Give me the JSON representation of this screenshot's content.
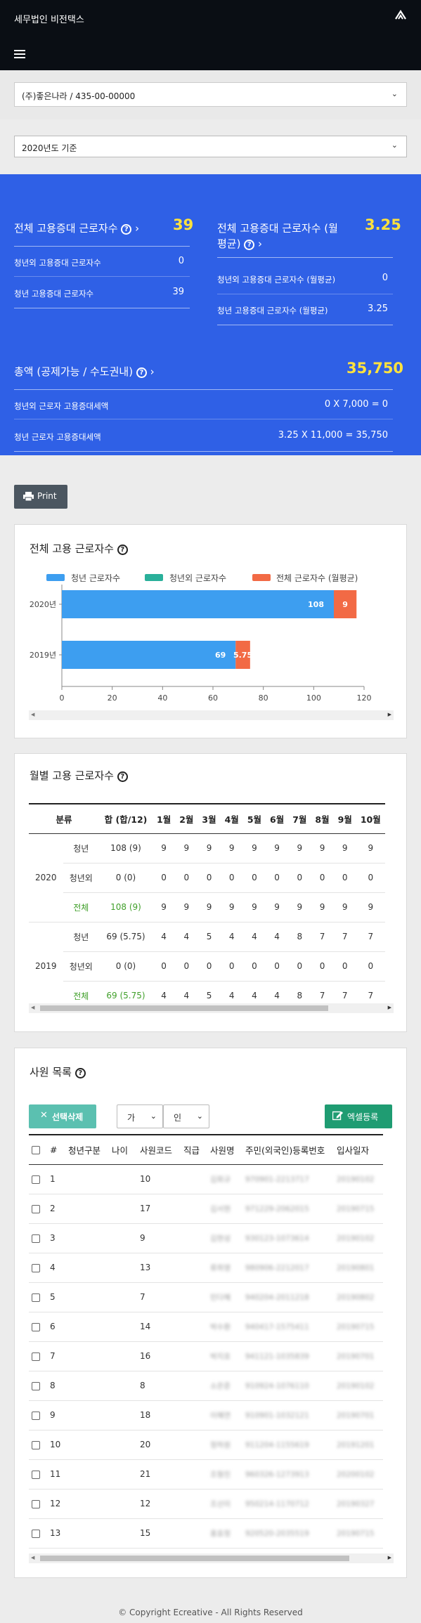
{
  "header": {
    "brand": "세무법인 비전택스",
    "menu_icon": "hamburger-icon",
    "logo_icon": "triangle-logo-icon"
  },
  "company_select": {
    "value": "(주)좋은나라 / 435-00-00000"
  },
  "year_select": {
    "value": "2020년도 기준"
  },
  "summary": {
    "left": {
      "title": "전체 고용증대 근로자수",
      "value": "39",
      "rows": [
        {
          "label": "청년외 고용증대 근로자수",
          "value": "0"
        },
        {
          "label": "청년 고용증대 근로자수",
          "value": "39"
        }
      ]
    },
    "right": {
      "title_line1": "전체 고용증대 근로자수 (월",
      "title_line2": "평균)",
      "value": "3.25",
      "rows": [
        {
          "label": "청년외 고용증대 근로자수 (월평균)",
          "value": "0"
        },
        {
          "label": "청년 고용증대 근로자수 (월평균)",
          "value": "3.25"
        }
      ]
    },
    "total": {
      "title": "총액 (공제가능 / 수도권내)",
      "value": "35,750",
      "rows": [
        {
          "label": "청년외 근로자 고용증대세액",
          "value": "0 X 7,000 = 0"
        },
        {
          "label": "청년 근로자 고용증대세액",
          "value": "3.25 X 11,000 = 35,750"
        }
      ]
    }
  },
  "print_button": {
    "label": "Print"
  },
  "chart_card": {
    "title": "전체 고용 근로자수"
  },
  "chart_data": {
    "type": "bar",
    "orientation": "horizontal",
    "stacked": true,
    "categories": [
      "2020년",
      "2019년"
    ],
    "series": [
      {
        "name": "청년 근로자수",
        "color": "#3d9ef0",
        "values": [
          108,
          69
        ],
        "labels": [
          "108",
          "69"
        ]
      },
      {
        "name": "청년외 근로자수",
        "color": "#2ab09a",
        "values": [
          0,
          0
        ],
        "labels": [
          "0",
          "0"
        ]
      },
      {
        "name": "전체 근로자수 (월평균)",
        "color": "#f26a45",
        "values": [
          9,
          5.75
        ],
        "labels": [
          "9",
          "5.75"
        ]
      }
    ],
    "xticks": [
      "0",
      "20",
      "40",
      "60",
      "80",
      "100",
      "120"
    ],
    "xlim": [
      0,
      120
    ],
    "legend": "top"
  },
  "monthly_card": {
    "title": "월별 고용 근로자수",
    "headers": [
      "분류",
      "",
      "합 (합/12)",
      "1월",
      "2월",
      "3월",
      "4월",
      "5월",
      "6월",
      "7월",
      "8월",
      "9월",
      "10월"
    ],
    "groups": [
      {
        "year": "2020",
        "rows": [
          {
            "type": "청년",
            "sum": "108 (9)",
            "months": [
              "9",
              "9",
              "9",
              "9",
              "9",
              "9",
              "9",
              "9",
              "9",
              "9"
            ]
          },
          {
            "type": "청년외",
            "sum": "0 (0)",
            "months": [
              "0",
              "0",
              "0",
              "0",
              "0",
              "0",
              "0",
              "0",
              "0",
              "0"
            ]
          },
          {
            "type": "전체",
            "sum": "108 (9)",
            "months": [
              "9",
              "9",
              "9",
              "9",
              "9",
              "9",
              "9",
              "9",
              "9",
              "9"
            ]
          }
        ]
      },
      {
        "year": "2019",
        "rows": [
          {
            "type": "청년",
            "sum": "69 (5.75)",
            "months": [
              "4",
              "4",
              "5",
              "4",
              "4",
              "4",
              "8",
              "7",
              "7",
              "7"
            ]
          },
          {
            "type": "청년외",
            "sum": "0 (0)",
            "months": [
              "0",
              "0",
              "0",
              "0",
              "0",
              "0",
              "0",
              "0",
              "0",
              "0"
            ]
          },
          {
            "type": "전체",
            "sum": "69 (5.75)",
            "months": [
              "4",
              "4",
              "5",
              "4",
              "4",
              "4",
              "8",
              "7",
              "7",
              "7"
            ]
          }
        ]
      }
    ]
  },
  "employee_card": {
    "title": "사원 목록",
    "delete_button": "선택삭제",
    "excel_button": "엑셀등록",
    "filter1": "가",
    "filter2": "인",
    "headers": [
      "",
      "#",
      "청년구분",
      "나이",
      "사원코드",
      "직급",
      "사원명",
      "주민(외국인)등록번호",
      "입사일자"
    ],
    "rows": [
      {
        "no": "1",
        "code": "10",
        "name": "김회규",
        "rrn": "970901-2213717",
        "date": "20190102"
      },
      {
        "no": "2",
        "code": "17",
        "name": "김서현",
        "rrn": "971229-2062015",
        "date": "20190715"
      },
      {
        "no": "3",
        "code": "9",
        "name": "김현성",
        "rrn": "930123-1073614",
        "date": "20190102"
      },
      {
        "no": "4",
        "code": "13",
        "name": "류희영",
        "rrn": "980906-2212017",
        "date": "20190801"
      },
      {
        "no": "5",
        "code": "7",
        "name": "민다혜",
        "rrn": "940204-2011218",
        "date": "20190802"
      },
      {
        "no": "6",
        "code": "14",
        "name": "박수환",
        "rrn": "940417-1575411",
        "date": "20190715"
      },
      {
        "no": "7",
        "code": "16",
        "name": "박지호",
        "rrn": "941121-1035839",
        "date": "20190701"
      },
      {
        "no": "8",
        "code": "8",
        "name": "소은준",
        "rrn": "910924-1076110",
        "date": "20190102"
      },
      {
        "no": "9",
        "code": "18",
        "name": "이혜연",
        "rrn": "910901-1032121",
        "date": "20190701"
      },
      {
        "no": "10",
        "code": "20",
        "name": "정하원",
        "rrn": "911204-1155619",
        "date": "20191201"
      },
      {
        "no": "11",
        "code": "21",
        "name": "조형진",
        "rrn": "960326-1273913",
        "date": "20200102"
      },
      {
        "no": "12",
        "code": "12",
        "name": "조산미",
        "rrn": "950214-1170712",
        "date": "20190327"
      },
      {
        "no": "13",
        "code": "15",
        "name": "홍효정",
        "rrn": "920520-2035519",
        "date": "20190715"
      }
    ]
  },
  "footer": {
    "text": "© Copyright Ecreative - All Rights Reserved"
  }
}
